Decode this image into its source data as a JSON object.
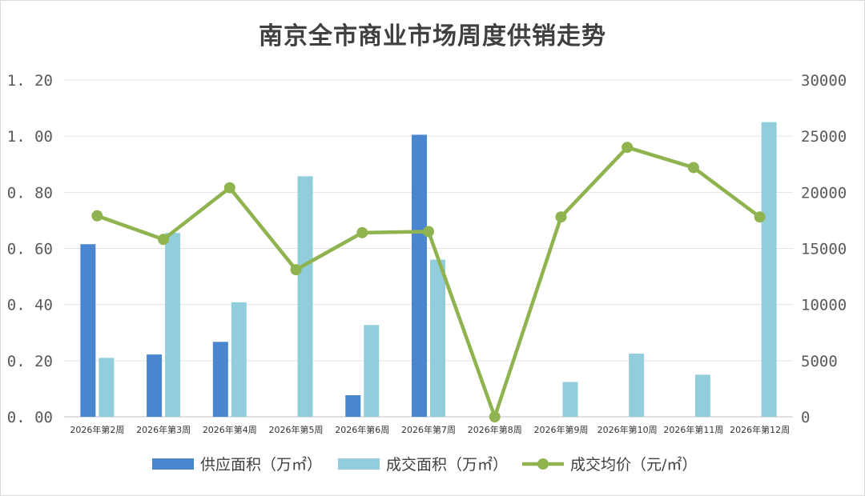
{
  "chart_data": {
    "type": "bar",
    "title": "南京全市商业市场周度供销走势",
    "categories": [
      "2026年第2周",
      "2026年第3周",
      "2026年第4周",
      "2026年第5周",
      "2026年第6周",
      "2026年第7周",
      "2026年第8周",
      "2026年第9周",
      "2026年第10周",
      "2026年第11周",
      "2026年第12周"
    ],
    "series": [
      {
        "name": "供应面积（万㎡）",
        "type": "bar",
        "axis": "left",
        "color": "#4A86D0",
        "values": [
          0.615,
          0.222,
          0.267,
          null,
          0.077,
          1.005,
          null,
          null,
          null,
          null,
          null
        ]
      },
      {
        "name": "成交面积（万㎡）",
        "type": "bar",
        "axis": "left",
        "color": "#92CDDC",
        "values": [
          0.21,
          0.655,
          0.408,
          0.857,
          0.327,
          0.56,
          null,
          0.124,
          0.225,
          0.15,
          1.05
        ]
      },
      {
        "name": "成交均价（元/㎡）",
        "type": "line",
        "axis": "right",
        "color": "#8FB34F",
        "values": [
          17900,
          15800,
          20400,
          13100,
          16400,
          16500,
          0,
          17800,
          24000,
          22200,
          17800
        ]
      }
    ],
    "y_left": {
      "min": 0,
      "max": 1.2,
      "ticks": [
        "0. 00",
        "0. 20",
        "0. 40",
        "0. 60",
        "0. 80",
        "1. 00",
        "1. 20"
      ]
    },
    "y_right": {
      "min": 0,
      "max": 30000,
      "ticks": [
        "0",
        "5000",
        "10000",
        "15000",
        "20000",
        "25000",
        "30000"
      ]
    },
    "grid": true,
    "legend_position": "bottom"
  }
}
